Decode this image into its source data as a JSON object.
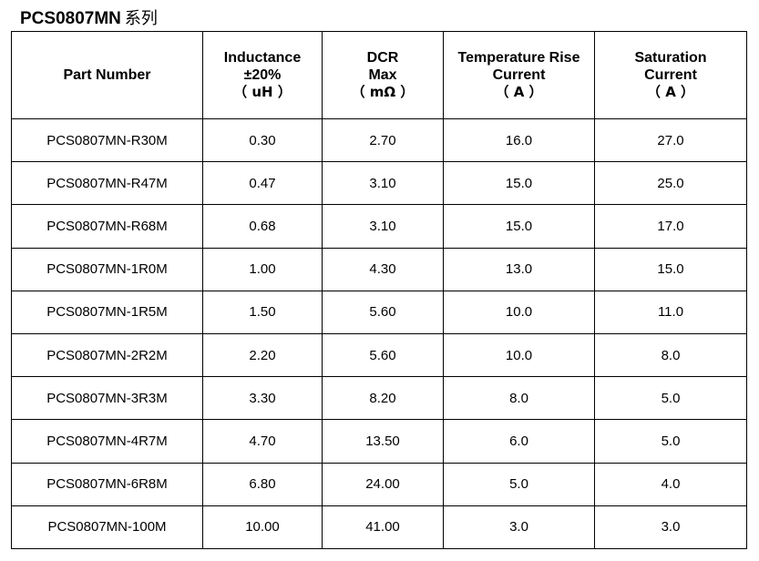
{
  "title": {
    "model": "PCS0807MN",
    "series": "系列"
  },
  "table": {
    "headers": [
      {
        "lines": [
          "Part Number"
        ],
        "unit": ""
      },
      {
        "lines": [
          "Inductance",
          "±20%"
        ],
        "unit": "（ uH ）"
      },
      {
        "lines": [
          "DCR",
          "Max"
        ],
        "unit": "（ mΩ ）"
      },
      {
        "lines": [
          "Temperature Rise",
          "Current"
        ],
        "unit": "（ A ）"
      },
      {
        "lines": [
          "Saturation",
          "Current"
        ],
        "unit": "（ A ）"
      }
    ],
    "rows": [
      [
        "PCS0807MN-R30M",
        "0.30",
        "2.70",
        "16.0",
        "27.0"
      ],
      [
        "PCS0807MN-R47M",
        "0.47",
        "3.10",
        "15.0",
        "25.0"
      ],
      [
        "PCS0807MN-R68M",
        "0.68",
        "3.10",
        "15.0",
        "17.0"
      ],
      [
        "PCS0807MN-1R0M",
        "1.00",
        "4.30",
        "13.0",
        "15.0"
      ],
      [
        "PCS0807MN-1R5M",
        "1.50",
        "5.60",
        "10.0",
        "11.0"
      ],
      [
        "PCS0807MN-2R2M",
        "2.20",
        "5.60",
        "10.0",
        "8.0"
      ],
      [
        "PCS0807MN-3R3M",
        "3.30",
        "8.20",
        "8.0",
        "5.0"
      ],
      [
        "PCS0807MN-4R7M",
        "4.70",
        "13.50",
        "6.0",
        "5.0"
      ],
      [
        "PCS0807MN-6R8M",
        "6.80",
        "24.00",
        "5.0",
        "4.0"
      ],
      [
        "PCS0807MN-100M",
        "10.00",
        "41.00",
        "3.0",
        "3.0"
      ]
    ]
  }
}
